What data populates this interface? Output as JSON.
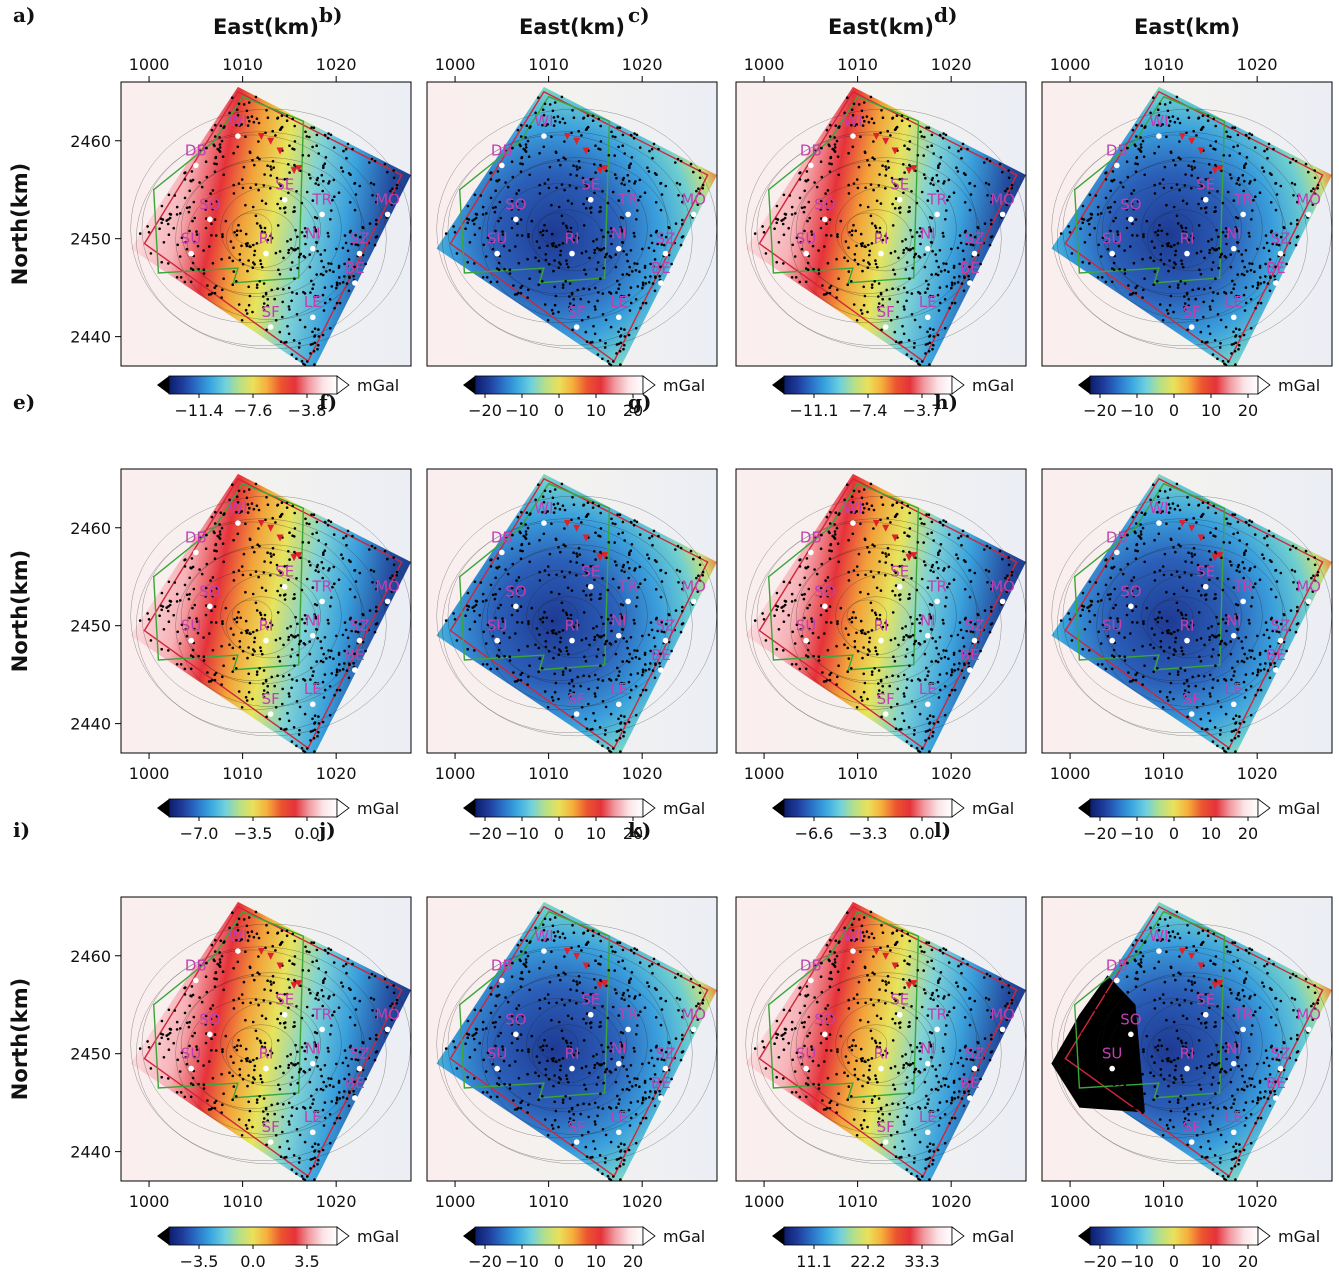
{
  "chart_data": {
    "type": "heatmap",
    "x_axis_title": "East(km)",
    "y_axis_title": "North(km)",
    "x_ticks": [
      1000,
      1010,
      1020
    ],
    "y_ticks": [
      2440,
      2450,
      2460
    ],
    "xlim": [
      997,
      1028
    ],
    "ylim": [
      2437,
      2466
    ],
    "colorbar_unit": "mGal",
    "colormap": [
      "#0b1d6b",
      "#1f3c9c",
      "#2a72c8",
      "#3aa7e0",
      "#6ed0de",
      "#b5e08a",
      "#eae15a",
      "#f6ae3c",
      "#ec5530",
      "#e5323a",
      "#f19aa0",
      "#fbe3e6",
      "#ffffff"
    ],
    "sites": [
      {
        "name": "WI",
        "x": 1009.5,
        "y": 2461.5
      },
      {
        "name": "DB",
        "x": 1005.0,
        "y": 2458.5
      },
      {
        "name": "SE",
        "x": 1014.5,
        "y": 2455.0
      },
      {
        "name": "TR",
        "x": 1018.5,
        "y": 2453.5
      },
      {
        "name": "MO",
        "x": 1025.5,
        "y": 2453.5
      },
      {
        "name": "SO",
        "x": 1006.5,
        "y": 2453.0
      },
      {
        "name": "NI",
        "x": 1017.5,
        "y": 2450.0
      },
      {
        "name": "SU",
        "x": 1004.5,
        "y": 2449.5
      },
      {
        "name": "RI",
        "x": 1012.5,
        "y": 2449.5
      },
      {
        "name": "SZ",
        "x": 1022.5,
        "y": 2449.5
      },
      {
        "name": "BE",
        "x": 1022.0,
        "y": 2446.5
      },
      {
        "name": "LE",
        "x": 1017.5,
        "y": 2443.0
      },
      {
        "name": "SF",
        "x": 1013.0,
        "y": 2442.0
      }
    ],
    "panels": [
      {
        "label": "a)",
        "colorbar_ticks": [
          "−11.4",
          "−7.6",
          "−3.8"
        ],
        "field": "regional"
      },
      {
        "label": "b)",
        "colorbar_ticks": [
          "−20",
          "−10",
          "0",
          "10",
          "20"
        ],
        "field": "local"
      },
      {
        "label": "c)",
        "colorbar_ticks": [
          "−11.1",
          "−7.4",
          "−3.7"
        ],
        "field": "regional"
      },
      {
        "label": "d)",
        "colorbar_ticks": [
          "−20",
          "−10",
          "0",
          "10",
          "20"
        ],
        "field": "local"
      },
      {
        "label": "e)",
        "colorbar_ticks": [
          "−7.0",
          "−3.5",
          "0.0"
        ],
        "field": "regional"
      },
      {
        "label": "f)",
        "colorbar_ticks": [
          "−20",
          "−10",
          "0",
          "10",
          "20"
        ],
        "field": "local"
      },
      {
        "label": "g)",
        "colorbar_ticks": [
          "−6.6",
          "−3.3",
          "0.0"
        ],
        "field": "regional"
      },
      {
        "label": "h)",
        "colorbar_ticks": [
          "−20",
          "−10",
          "0",
          "10",
          "20"
        ],
        "field": "local"
      },
      {
        "label": "i)",
        "colorbar_ticks": [
          "−3.5",
          "0.0",
          "3.5"
        ],
        "field": "regional"
      },
      {
        "label": "j)",
        "colorbar_ticks": [
          "−20",
          "−10",
          "0",
          "10",
          "20"
        ],
        "field": "local"
      },
      {
        "label": "k)",
        "colorbar_ticks": [
          "11.1",
          "22.2",
          "33.3"
        ],
        "field": "regional"
      },
      {
        "label": "l)",
        "colorbar_ticks": [
          "−20",
          "−10",
          "0",
          "10",
          "20"
        ],
        "field": "local_dark"
      }
    ]
  }
}
